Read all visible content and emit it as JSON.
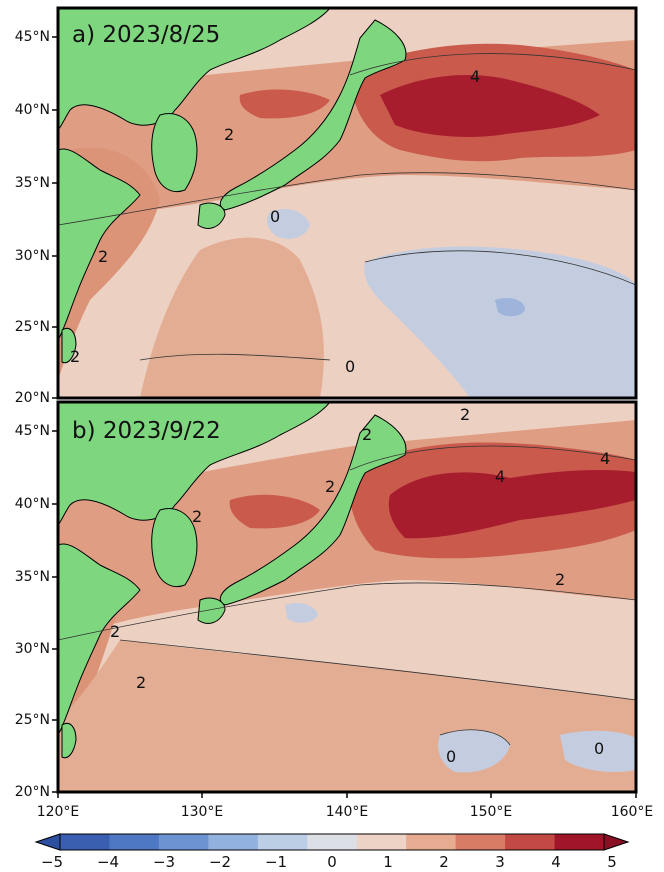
{
  "panels": [
    {
      "title": "a) 2023/8/25"
    },
    {
      "title": "b) 2023/9/22"
    }
  ],
  "lat_ticks": [
    "45°N",
    "40°N",
    "35°N",
    "30°N",
    "25°N",
    "20°N"
  ],
  "lon_ticks": [
    "120°E",
    "130°E",
    "140°E",
    "150°E",
    "160°E"
  ],
  "colorbar": {
    "ticks": [
      "−5",
      "−4",
      "−3",
      "−2",
      "−1",
      "0",
      "1",
      "2",
      "3",
      "4",
      "5"
    ],
    "range": [
      -5,
      5
    ],
    "colors": [
      "#3a5fb0",
      "#4f78c4",
      "#6d93d3",
      "#93b1df",
      "#bccde6",
      "#dcdfe6",
      "#ecd3c6",
      "#e6ab90",
      "#d97c66",
      "#c34a44",
      "#a1152a"
    ]
  },
  "contour_labels": {
    "a": [
      "2",
      "4",
      "2",
      "2",
      "0",
      "0"
    ],
    "b": [
      "2",
      "2",
      "2",
      "2",
      "4",
      "4",
      "2",
      "2",
      "2",
      "0",
      "0"
    ]
  },
  "colors": {
    "land": "#7ed77e",
    "frame": "#000000"
  }
}
